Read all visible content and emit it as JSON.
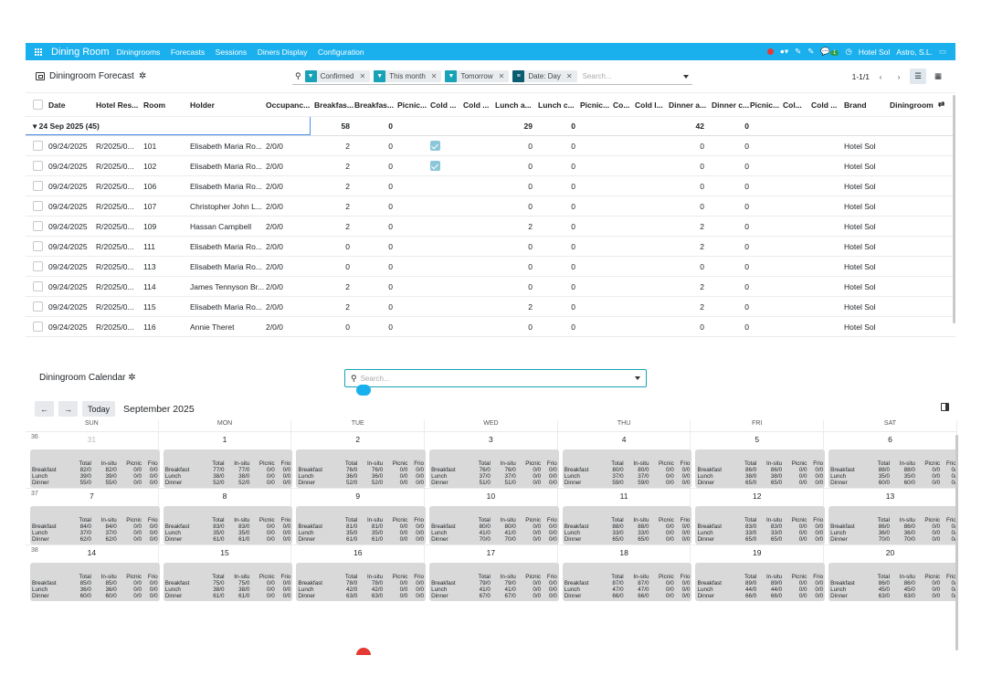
{
  "topbar": {
    "brand": "Dining Room",
    "nav": [
      "Diningrooms",
      "Forecasts",
      "Sessions",
      "Diners Display",
      "Configuration"
    ],
    "company": "Hotel Sol",
    "org": "Astro, S.L.",
    "badge": "1",
    "accent": "#1ab0ee"
  },
  "control": {
    "title": "Diningroom Forecast",
    "facets": [
      {
        "label": "Confirmed",
        "icon": "filter-icon"
      },
      {
        "label": "This month",
        "icon": "filter-icon"
      },
      {
        "label": "Tomorrow",
        "icon": "filter-icon"
      },
      {
        "label": "Date: Day",
        "icon": "group-icon"
      }
    ],
    "search_placeholder": "Search...",
    "pager": "1-1/1"
  },
  "table": {
    "headers": [
      "Date",
      "Hotel Res...",
      "Room",
      "Holder",
      "Occupanc...",
      "Breakfas...",
      "Breakfas...",
      "Picnic...",
      "Cold ...",
      "Cold ...",
      "Lunch a...",
      "Lunch c...",
      "Picnic...",
      "Co...",
      "Cold l...",
      "Dinner a...",
      "Dinner c...",
      "Picnic...",
      "Col...",
      "Cold ...",
      "Brand",
      "Diningroom"
    ],
    "group": {
      "label": "▾ 24 Sep 2025 (45)",
      "breakfast": "58",
      "breakfast_c": "0",
      "lunch": "29",
      "lunch_c": "0",
      "dinner": "42",
      "dinner_c": "0"
    },
    "rows": [
      {
        "date": "09/24/2025",
        "res": "R/2025/0...",
        "room": "101",
        "holder": "Elisabeth Maria Ro...",
        "occ": "2/0/0",
        "b": "2",
        "bc": "0",
        "cold": true,
        "l": "0",
        "lc": "0",
        "d": "0",
        "dc": "0",
        "brand": "Hotel Sol"
      },
      {
        "date": "09/24/2025",
        "res": "R/2025/0...",
        "room": "102",
        "holder": "Elisabeth Maria Ro...",
        "occ": "2/0/0",
        "b": "2",
        "bc": "0",
        "cold": true,
        "l": "0",
        "lc": "0",
        "d": "0",
        "dc": "0",
        "brand": "Hotel Sol"
      },
      {
        "date": "09/24/2025",
        "res": "R/2025/0...",
        "room": "106",
        "holder": "Elisabeth Maria Ro...",
        "occ": "2/0/0",
        "b": "2",
        "bc": "0",
        "cold": false,
        "l": "0",
        "lc": "0",
        "d": "0",
        "dc": "0",
        "brand": "Hotel Sol"
      },
      {
        "date": "09/24/2025",
        "res": "R/2025/0...",
        "room": "107",
        "holder": "Christopher John L...",
        "occ": "2/0/0",
        "b": "2",
        "bc": "0",
        "cold": false,
        "l": "0",
        "lc": "0",
        "d": "0",
        "dc": "0",
        "brand": "Hotel Sol"
      },
      {
        "date": "09/24/2025",
        "res": "R/2025/0...",
        "room": "109",
        "holder": "Hassan Campbell",
        "occ": "2/0/0",
        "b": "2",
        "bc": "0",
        "cold": false,
        "l": "2",
        "lc": "0",
        "d": "2",
        "dc": "0",
        "brand": "Hotel Sol"
      },
      {
        "date": "09/24/2025",
        "res": "R/2025/0...",
        "room": "111",
        "holder": "Elisabeth Maria Ro...",
        "occ": "2/0/0",
        "b": "0",
        "bc": "0",
        "cold": false,
        "l": "0",
        "lc": "0",
        "d": "2",
        "dc": "0",
        "brand": "Hotel Sol"
      },
      {
        "date": "09/24/2025",
        "res": "R/2025/0...",
        "room": "113",
        "holder": "Elisabeth Maria Ro...",
        "occ": "2/0/0",
        "b": "0",
        "bc": "0",
        "cold": false,
        "l": "0",
        "lc": "0",
        "d": "0",
        "dc": "0",
        "brand": "Hotel Sol"
      },
      {
        "date": "09/24/2025",
        "res": "R/2025/0...",
        "room": "114",
        "holder": "James Tennyson Br...",
        "occ": "2/0/0",
        "b": "2",
        "bc": "0",
        "cold": false,
        "l": "0",
        "lc": "0",
        "d": "2",
        "dc": "0",
        "brand": "Hotel Sol"
      },
      {
        "date": "09/24/2025",
        "res": "R/2025/0...",
        "room": "115",
        "holder": "Elisabeth Maria Ro...",
        "occ": "2/0/0",
        "b": "2",
        "bc": "0",
        "cold": false,
        "l": "2",
        "lc": "0",
        "d": "2",
        "dc": "0",
        "brand": "Hotel Sol"
      },
      {
        "date": "09/24/2025",
        "res": "R/2025/0...",
        "room": "116",
        "holder": "Annie Theret",
        "occ": "2/0/0",
        "b": "0",
        "bc": "0",
        "cold": false,
        "l": "0",
        "lc": "0",
        "d": "0",
        "dc": "0",
        "brand": "Hotel Sol"
      }
    ]
  },
  "calendar": {
    "title": "Diningroom Calendar",
    "search_placeholder": "Search...",
    "today": "Today",
    "month": "September 2025",
    "days": [
      "SUN",
      "MON",
      "TUE",
      "WED",
      "THU",
      "FRI",
      "SAT"
    ],
    "cols": [
      "Total",
      "In-situ",
      "Picnic",
      "Frio"
    ],
    "weeks": [
      {
        "num": "36",
        "cells": [
          {
            "d": "31",
            "grey": true,
            "v": [
              [
                "Breakfast",
                "82/0",
                "82/0",
                "0/0",
                "0/0"
              ],
              [
                "Lunch",
                "39/0",
                "39/0",
                "0/0",
                "0/0"
              ],
              [
                "Dinner",
                "55/0",
                "55/0",
                "0/0",
                "0/0"
              ]
            ]
          },
          {
            "d": "1",
            "v": [
              [
                "Breakfast",
                "77/0",
                "77/0",
                "0/0",
                "0/0"
              ],
              [
                "Lunch",
                "38/0",
                "38/0",
                "0/0",
                "0/0"
              ],
              [
                "Dinner",
                "52/0",
                "52/0",
                "0/0",
                "0/0"
              ]
            ]
          },
          {
            "d": "2",
            "v": [
              [
                "Breakfast",
                "76/0",
                "76/0",
                "0/0",
                "0/0"
              ],
              [
                "Lunch",
                "36/0",
                "36/0",
                "0/0",
                "0/0"
              ],
              [
                "Dinner",
                "52/0",
                "52/0",
                "0/0",
                "0/0"
              ]
            ]
          },
          {
            "d": "3",
            "v": [
              [
                "Breakfast",
                "76/0",
                "76/0",
                "0/0",
                "0/0"
              ],
              [
                "Lunch",
                "37/0",
                "37/0",
                "0/0",
                "0/0"
              ],
              [
                "Dinner",
                "51/0",
                "51/0",
                "0/0",
                "0/0"
              ]
            ]
          },
          {
            "d": "4",
            "v": [
              [
                "Breakfast",
                "80/0",
                "80/0",
                "0/0",
                "0/0"
              ],
              [
                "Lunch",
                "37/0",
                "37/0",
                "0/0",
                "0/0"
              ],
              [
                "Dinner",
                "59/0",
                "59/0",
                "0/0",
                "0/0"
              ]
            ]
          },
          {
            "d": "5",
            "v": [
              [
                "Breakfast",
                "86/0",
                "86/0",
                "0/0",
                "0/0"
              ],
              [
                "Lunch",
                "38/0",
                "38/0",
                "0/0",
                "0/0"
              ],
              [
                "Dinner",
                "65/0",
                "65/0",
                "0/0",
                "0/0"
              ]
            ]
          },
          {
            "d": "6",
            "v": [
              [
                "Breakfast",
                "88/0",
                "88/0",
                "0/0",
                "0/"
              ],
              [
                "Lunch",
                "35/0",
                "35/0",
                "0/0",
                "0/"
              ],
              [
                "Dinner",
                "60/0",
                "60/0",
                "0/0",
                "0/"
              ]
            ]
          }
        ]
      },
      {
        "num": "37",
        "cells": [
          {
            "d": "7",
            "v": [
              [
                "Breakfast",
                "84/0",
                "84/0",
                "0/0",
                "0/0"
              ],
              [
                "Lunch",
                "37/0",
                "37/0",
                "0/0",
                "0/0"
              ],
              [
                "Dinner",
                "62/0",
                "62/0",
                "0/0",
                "0/0"
              ]
            ]
          },
          {
            "d": "8",
            "v": [
              [
                "Breakfast",
                "83/0",
                "83/0",
                "0/0",
                "0/0"
              ],
              [
                "Lunch",
                "35/0",
                "35/0",
                "0/0",
                "0/0"
              ],
              [
                "Dinner",
                "61/0",
                "61/0",
                "0/0",
                "0/0"
              ]
            ]
          },
          {
            "d": "9",
            "v": [
              [
                "Breakfast",
                "81/0",
                "81/0",
                "0/0",
                "0/0"
              ],
              [
                "Lunch",
                "35/0",
                "35/0",
                "0/0",
                "0/0"
              ],
              [
                "Dinner",
                "61/0",
                "61/0",
                "0/0",
                "0/0"
              ]
            ]
          },
          {
            "d": "10",
            "v": [
              [
                "Breakfast",
                "80/0",
                "80/0",
                "0/0",
                "0/0"
              ],
              [
                "Lunch",
                "41/0",
                "41/0",
                "0/0",
                "0/0"
              ],
              [
                "Dinner",
                "70/0",
                "70/0",
                "0/0",
                "0/0"
              ]
            ]
          },
          {
            "d": "11",
            "v": [
              [
                "Breakfast",
                "88/0",
                "88/0",
                "0/0",
                "0/0"
              ],
              [
                "Lunch",
                "33/0",
                "33/0",
                "0/0",
                "0/0"
              ],
              [
                "Dinner",
                "65/0",
                "65/0",
                "0/0",
                "0/0"
              ]
            ]
          },
          {
            "d": "12",
            "v": [
              [
                "Breakfast",
                "83/0",
                "83/0",
                "0/0",
                "0/0"
              ],
              [
                "Lunch",
                "33/0",
                "33/0",
                "0/0",
                "0/0"
              ],
              [
                "Dinner",
                "65/0",
                "65/0",
                "0/0",
                "0/0"
              ]
            ]
          },
          {
            "d": "13",
            "v": [
              [
                "Breakfast",
                "86/0",
                "86/0",
                "0/0",
                "0/"
              ],
              [
                "Lunch",
                "36/0",
                "36/0",
                "0/0",
                "0/"
              ],
              [
                "Dinner",
                "70/0",
                "70/0",
                "0/0",
                "0/"
              ]
            ]
          }
        ]
      },
      {
        "num": "38",
        "cells": [
          {
            "d": "14",
            "v": [
              [
                "Breakfast",
                "85/0",
                "85/0",
                "0/0",
                "0/0"
              ],
              [
                "Lunch",
                "36/0",
                "36/0",
                "0/0",
                "0/0"
              ],
              [
                "Dinner",
                "60/0",
                "60/0",
                "0/0",
                "0/0"
              ]
            ]
          },
          {
            "d": "15",
            "v": [
              [
                "Breakfast",
                "75/0",
                "75/0",
                "0/0",
                "0/0"
              ],
              [
                "Lunch",
                "38/0",
                "38/0",
                "0/0",
                "0/0"
              ],
              [
                "Dinner",
                "61/0",
                "61/0",
                "0/0",
                "0/0"
              ]
            ]
          },
          {
            "d": "16",
            "v": [
              [
                "Breakfast",
                "78/0",
                "78/0",
                "0/0",
                "0/0"
              ],
              [
                "Lunch",
                "42/0",
                "42/0",
                "0/0",
                "0/0"
              ],
              [
                "Dinner",
                "63/0",
                "63/0",
                "0/0",
                "0/0"
              ]
            ]
          },
          {
            "d": "17",
            "v": [
              [
                "Breakfast",
                "79/0",
                "79/0",
                "0/0",
                "0/0"
              ],
              [
                "Lunch",
                "41/0",
                "41/0",
                "0/0",
                "0/0"
              ],
              [
                "Dinner",
                "67/0",
                "67/0",
                "0/0",
                "0/0"
              ]
            ]
          },
          {
            "d": "18",
            "v": [
              [
                "Breakfast",
                "87/0",
                "87/0",
                "0/0",
                "0/0"
              ],
              [
                "Lunch",
                "47/0",
                "47/0",
                "0/0",
                "0/0"
              ],
              [
                "Dinner",
                "66/0",
                "66/0",
                "0/0",
                "0/0"
              ]
            ]
          },
          {
            "d": "19",
            "v": [
              [
                "Breakfast",
                "89/0",
                "89/0",
                "0/0",
                "0/0"
              ],
              [
                "Lunch",
                "44/0",
                "44/0",
                "0/0",
                "0/0"
              ],
              [
                "Dinner",
                "66/0",
                "66/0",
                "0/0",
                "0/0"
              ]
            ]
          },
          {
            "d": "20",
            "v": [
              [
                "Breakfast",
                "86/0",
                "86/0",
                "0/0",
                "0/"
              ],
              [
                "Lunch",
                "45/0",
                "45/0",
                "0/0",
                "0/"
              ],
              [
                "Dinner",
                "63/0",
                "63/0",
                "0/0",
                "0/"
              ]
            ]
          }
        ]
      }
    ]
  }
}
